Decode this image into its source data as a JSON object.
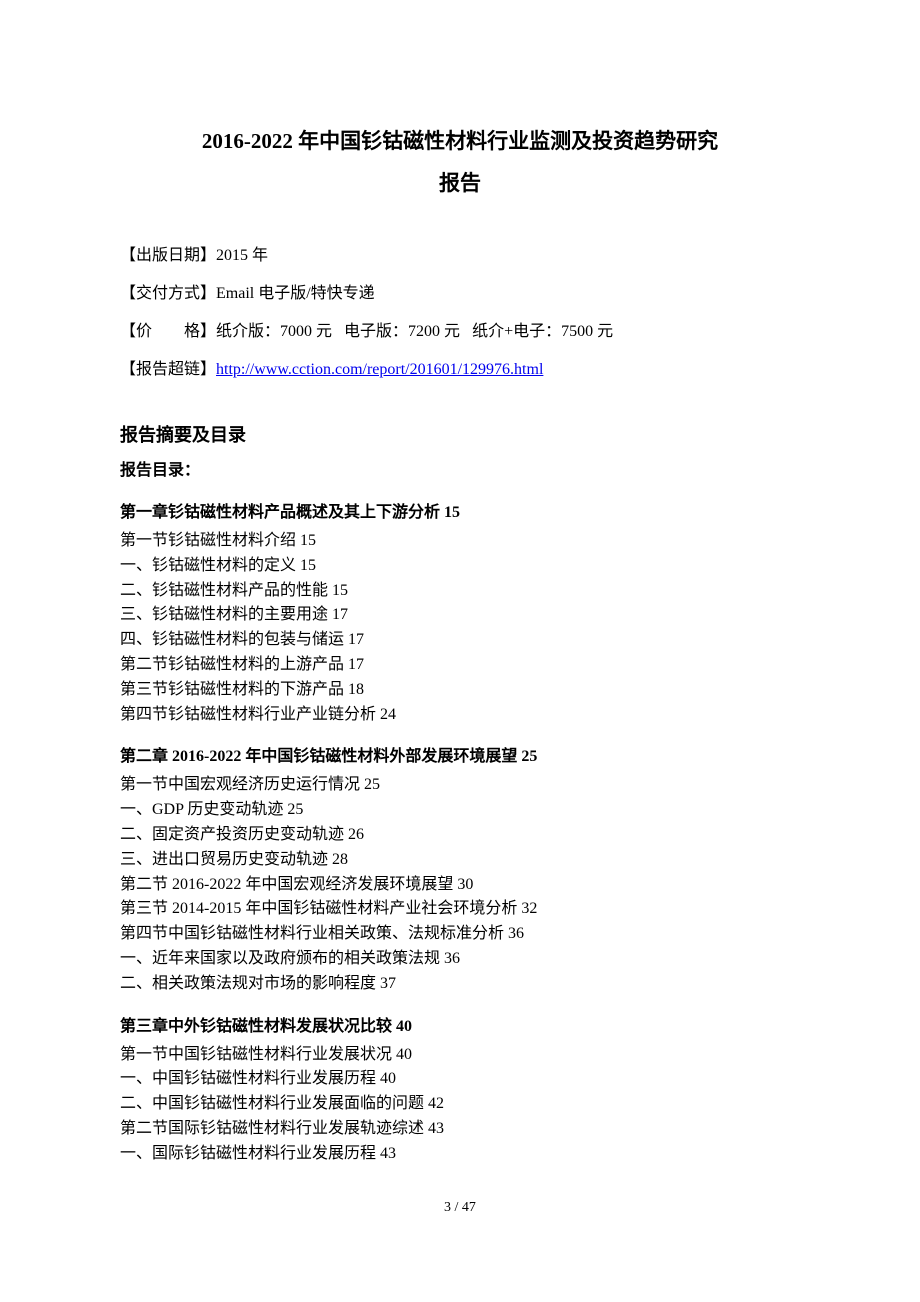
{
  "title_line1": "2016-2022 年中国钐钴磁性材料行业监测及投资趋势研究",
  "title_line2": "报告",
  "meta": {
    "pub_date_label": "【出版日期】",
    "pub_date_value": "2015 年",
    "delivery_label": "【交付方式】",
    "delivery_value": "Email 电子版/特快专递",
    "price_label": "【价",
    "price_label2": "格】",
    "price_paper": "纸介版：7000 元",
    "price_electronic": "电子版：7200 元",
    "price_combo": "纸介+电子：7500 元",
    "link_label": "【报告超链】",
    "link_url": "http://www.cction.com/report/201601/129976.html"
  },
  "summary_heading": "报告摘要及目录",
  "toc_heading": "报告目录：",
  "chapter1": {
    "title": "第一章钐钴磁性材料产品概述及其上下游分析 15",
    "lines": [
      "第一节钐钴磁性材料介绍 15",
      "一、钐钴磁性材料的定义 15",
      "二、钐钴磁性材料产品的性能 15",
      "三、钐钴磁性材料的主要用途 17",
      "四、钐钴磁性材料的包装与储运 17",
      "第二节钐钴磁性材料的上游产品 17",
      "第三节钐钴磁性材料的下游产品 18",
      "第四节钐钴磁性材料行业产业链分析 24"
    ]
  },
  "chapter2": {
    "title": "第二章 2016-2022 年中国钐钴磁性材料外部发展环境展望 25",
    "lines": [
      "第一节中国宏观经济历史运行情况 25",
      "一、GDP 历史变动轨迹 25",
      "二、固定资产投资历史变动轨迹 26",
      "三、进出口贸易历史变动轨迹 28",
      "第二节 2016-2022 年中国宏观经济发展环境展望 30",
      "第三节 2014-2015 年中国钐钴磁性材料产业社会环境分析 32",
      "第四节中国钐钴磁性材料行业相关政策、法规标准分析 36",
      "一、近年来国家以及政府颁布的相关政策法规 36",
      "二、相关政策法规对市场的影响程度 37"
    ]
  },
  "chapter3": {
    "title": "第三章中外钐钴磁性材料发展状况比较 40",
    "lines": [
      "第一节中国钐钴磁性材料行业发展状况 40",
      "一、中国钐钴磁性材料行业发展历程 40",
      "二、中国钐钴磁性材料行业发展面临的问题 42",
      "第二节国际钐钴磁性材料行业发展轨迹综述 43",
      "一、国际钐钴磁性材料行业发展历程 43"
    ]
  },
  "page_footer": "3  /  47"
}
